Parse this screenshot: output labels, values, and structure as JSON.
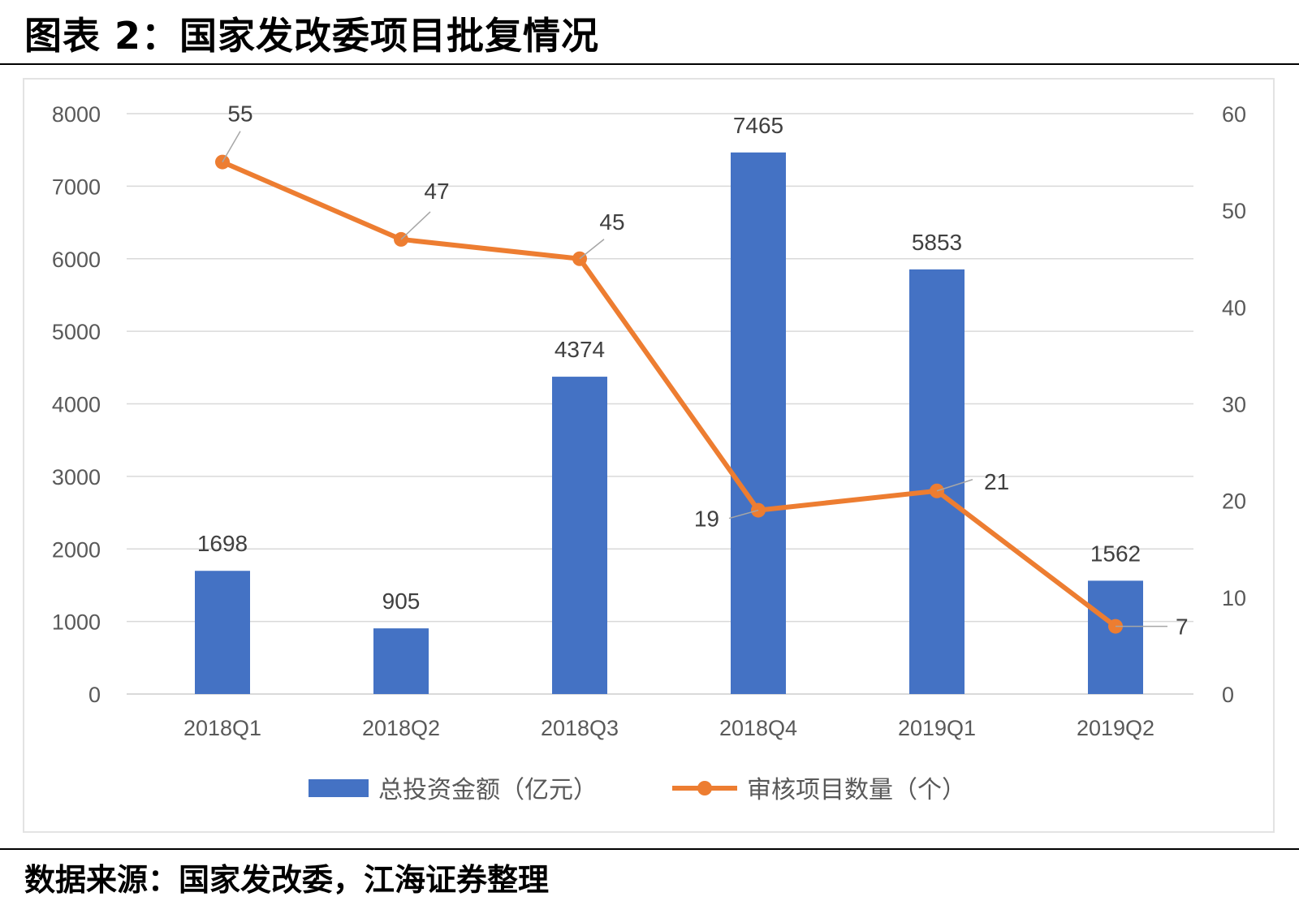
{
  "header": {
    "title": "图表 2：国家发改委项目批复情况"
  },
  "footer": {
    "source": "数据来源：国家发改委，江海证券整理"
  },
  "colors": {
    "bar": "#4472C4",
    "line": "#ED7D31",
    "grid": "#d9d9d9",
    "text": "#595959"
  },
  "chart_data": {
    "type": "bar",
    "title": "图表 2：国家发改委项目批复情况",
    "categories": [
      "2018Q1",
      "2018Q2",
      "2018Q3",
      "2018Q4",
      "2019Q1",
      "2019Q2"
    ],
    "series": [
      {
        "name": "总投资金额（亿元）",
        "type": "bar",
        "axis": "left",
        "values": [
          1698,
          905,
          4374,
          7465,
          5853,
          1562
        ]
      },
      {
        "name": "审核项目数量（个）",
        "type": "line",
        "axis": "right",
        "values": [
          55,
          47,
          45,
          19,
          21,
          7
        ]
      }
    ],
    "y_left": {
      "lim": [
        0,
        8000
      ],
      "ticks": [
        "0",
        "1000",
        "2000",
        "3000",
        "4000",
        "5000",
        "6000",
        "7000",
        "8000"
      ]
    },
    "y_right": {
      "lim": [
        0,
        60
      ],
      "ticks": [
        "0",
        "10",
        "20",
        "30",
        "40",
        "50",
        "60"
      ]
    },
    "grid": true,
    "legend_position": "bottom"
  }
}
